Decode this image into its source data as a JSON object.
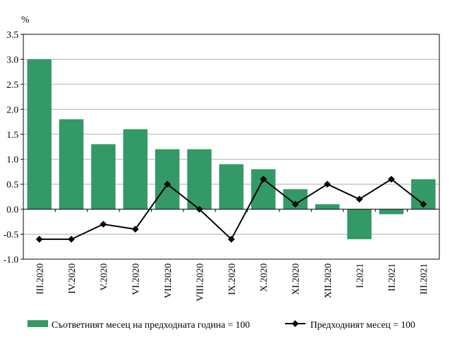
{
  "chart_data": {
    "type": "bar",
    "unit_label": "%",
    "categories": [
      "III.2020",
      "IV.2020",
      "V.2020",
      "VI.2020",
      "VII.2020",
      "VIII.2020",
      "IX.2020",
      "X.2020",
      "XI.2020",
      "XII.2020",
      "I.2021",
      "II.2021",
      "III.2021"
    ],
    "series": [
      {
        "name": "Съответният месец на предходната година = 100",
        "type": "bar",
        "color": "#339966",
        "values": [
          3.0,
          1.8,
          1.3,
          1.6,
          1.2,
          1.2,
          0.9,
          0.8,
          0.4,
          0.1,
          -0.6,
          -0.1,
          0.6
        ]
      },
      {
        "name": "Предходният месец = 100",
        "type": "line",
        "color": "#000000",
        "marker": "diamond",
        "values": [
          -0.6,
          -0.6,
          -0.3,
          -0.4,
          0.5,
          0.0,
          -0.6,
          0.6,
          0.1,
          0.5,
          0.2,
          0.6,
          0.1
        ]
      }
    ],
    "ylim": [
      -1.0,
      3.5
    ],
    "yticks": [
      "-1.0",
      "-0.5",
      "0.0",
      "0.5",
      "1.0",
      "1.5",
      "2.0",
      "2.5",
      "3.0",
      "3.5"
    ],
    "grid": true,
    "legend_position": "bottom"
  }
}
